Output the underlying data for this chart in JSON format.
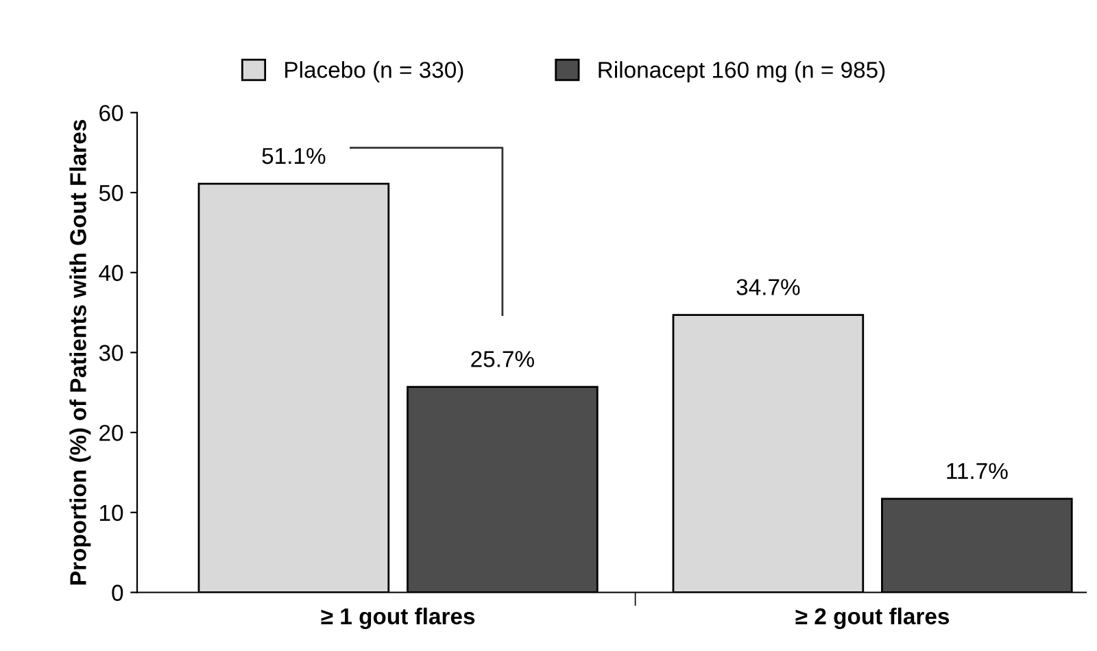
{
  "chart_data": {
    "type": "bar",
    "ylabel": "Proportion (%) of Patients with Gout Flares",
    "categories": [
      "≥ 1 gout flares",
      "≥ 2 gout flares"
    ],
    "series": [
      {
        "name": "Placebo (n = 330)",
        "color": "#d9d9d9",
        "values": [
          51.1,
          34.7
        ],
        "value_labels": [
          "51.1%",
          "34.7%"
        ]
      },
      {
        "name": "Rilonacept 160 mg (n = 985)",
        "color": "#4d4d4d",
        "values": [
          25.7,
          11.7
        ],
        "value_labels": [
          "25.7%",
          "11.7%"
        ]
      }
    ],
    "ylim": [
      0,
      60
    ],
    "yticks": [
      0,
      10,
      20,
      30,
      40,
      50,
      60
    ],
    "grid": false,
    "legend": "top"
  }
}
